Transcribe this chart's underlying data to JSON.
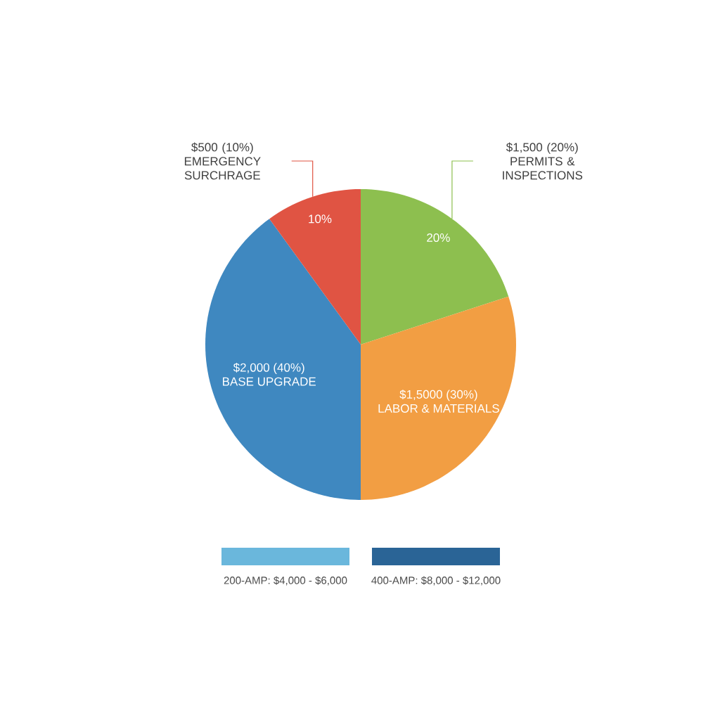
{
  "chart_data": {
    "type": "pie",
    "categories": [
      "PERMITS & INSPECTIONS",
      "LABOR & MATERIALS",
      "BASE UPGRADE",
      "EMERGENCY SURCHRAGE"
    ],
    "values": [
      20,
      30,
      40,
      10
    ],
    "colors": [
      "#8dbf4f",
      "#f29e43",
      "#3f88c0",
      "#e05443"
    ],
    "value_labels": [
      "$1,500 (20%)",
      "$1,5000 (30%)",
      "$2,000 (40%)",
      "$500 (10%)"
    ],
    "annotations": [
      "10%",
      "20%",
      "200-AMP: $4,000 - $6,000",
      "400-AMP: $8,000 - $12,000"
    ]
  }
}
